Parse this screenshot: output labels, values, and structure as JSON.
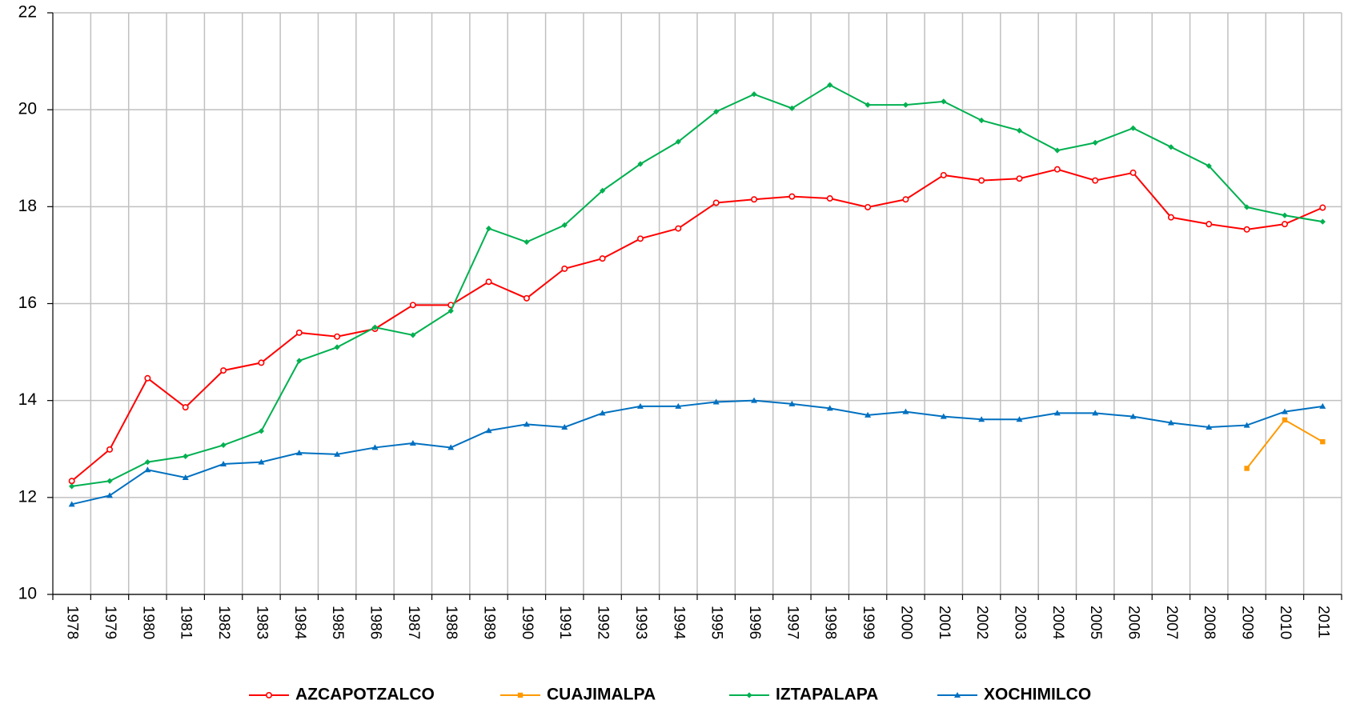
{
  "chart_data": {
    "type": "line",
    "categories": [
      "1978",
      "1979",
      "1980",
      "1981",
      "1982",
      "1983",
      "1984",
      "1985",
      "1986",
      "1987",
      "1988",
      "1989",
      "1990",
      "1991",
      "1992",
      "1993",
      "1994",
      "1995",
      "1996",
      "1997",
      "1998",
      "1999",
      "2000",
      "2001",
      "2002",
      "2003",
      "2004",
      "2005",
      "2006",
      "2007",
      "2008",
      "2009",
      "2010",
      "2011"
    ],
    "series": [
      {
        "name": "AZCAPOTZALCO",
        "color": "#ff0000",
        "marker": "circle",
        "values": [
          12.34,
          12.99,
          14.46,
          13.86,
          14.62,
          14.78,
          15.4,
          15.32,
          15.48,
          15.97,
          15.97,
          16.45,
          16.11,
          16.72,
          16.93,
          17.34,
          17.55,
          18.08,
          18.15,
          18.21,
          18.17,
          17.99,
          18.15,
          18.65,
          18.54,
          18.58,
          18.77,
          18.54,
          18.7,
          17.78,
          17.64,
          17.53,
          17.64,
          17.98
        ]
      },
      {
        "name": "CUAJIMALPA",
        "color": "#ff9900",
        "marker": "square",
        "values": [
          null,
          null,
          null,
          null,
          null,
          null,
          null,
          null,
          null,
          null,
          null,
          null,
          null,
          null,
          null,
          null,
          null,
          null,
          null,
          null,
          null,
          null,
          null,
          null,
          null,
          null,
          null,
          null,
          null,
          null,
          null,
          12.6,
          13.6,
          13.15
        ]
      },
      {
        "name": "IZTAPALAPA",
        "color": "#00b050",
        "marker": "diamond",
        "values": [
          12.23,
          12.34,
          12.73,
          12.85,
          13.08,
          13.37,
          14.82,
          15.1,
          15.51,
          15.35,
          15.85,
          17.55,
          17.27,
          17.62,
          18.33,
          18.88,
          19.34,
          19.96,
          20.32,
          20.03,
          20.51,
          20.1,
          20.1,
          20.17,
          19.78,
          19.57,
          19.16,
          19.32,
          19.62,
          19.23,
          18.84,
          17.99,
          17.82,
          17.69
        ]
      },
      {
        "name": "XOCHIMILCO",
        "color": "#0070c0",
        "marker": "triangle",
        "values": [
          11.86,
          12.04,
          12.57,
          12.41,
          12.69,
          12.73,
          12.92,
          12.89,
          13.03,
          13.12,
          13.03,
          13.38,
          13.51,
          13.45,
          13.74,
          13.88,
          13.88,
          13.97,
          14.0,
          13.93,
          13.84,
          13.7,
          13.77,
          13.67,
          13.61,
          13.61,
          13.74,
          13.74,
          13.67,
          13.54,
          13.45,
          13.49,
          13.77,
          13.88
        ]
      }
    ],
    "ylim": [
      10,
      22
    ],
    "yticks": [
      10,
      12,
      14,
      16,
      18,
      20,
      22
    ],
    "grid": true,
    "legend": "bottom"
  }
}
